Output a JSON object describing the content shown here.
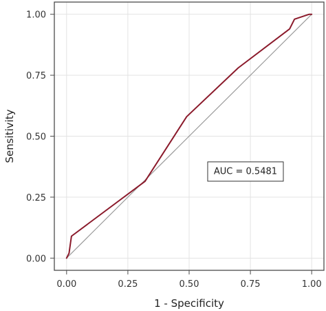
{
  "chart_data": {
    "type": "line",
    "xlabel": "1 - Specificity",
    "ylabel": "Sensitivity",
    "xlim": [
      -0.05,
      1.05
    ],
    "ylim": [
      -0.05,
      1.05
    ],
    "x_ticks": [
      0.0,
      0.25,
      0.5,
      0.75,
      1.0
    ],
    "y_ticks": [
      0.0,
      0.25,
      0.5,
      0.75,
      1.0
    ],
    "x_tick_labels": [
      "0.00",
      "0.25",
      "0.50",
      "0.75",
      "1.00"
    ],
    "y_tick_labels": [
      "0.00",
      "0.25",
      "0.50",
      "0.75",
      "1.00"
    ],
    "grid": true,
    "series": [
      {
        "color": "#8b1a2b",
        "x": [
          0.0,
          0.01,
          0.02,
          0.32,
          0.49,
          0.7,
          0.91,
          0.93,
          0.99,
          1.0
        ],
        "y": [
          0.0,
          0.02,
          0.09,
          0.315,
          0.58,
          0.78,
          0.94,
          0.98,
          1.0,
          1.0
        ]
      },
      {
        "color": "#9a9a9a",
        "x": [
          0.0,
          1.0
        ],
        "y": [
          0.0,
          1.0
        ]
      }
    ],
    "annotations": [
      {
        "text": "AUC = 0.5481",
        "x": 0.73,
        "y": 0.355
      }
    ]
  },
  "colors": {
    "grid": "#e3e3e3",
    "frame": "#4a4a4a",
    "text": "#222222"
  }
}
